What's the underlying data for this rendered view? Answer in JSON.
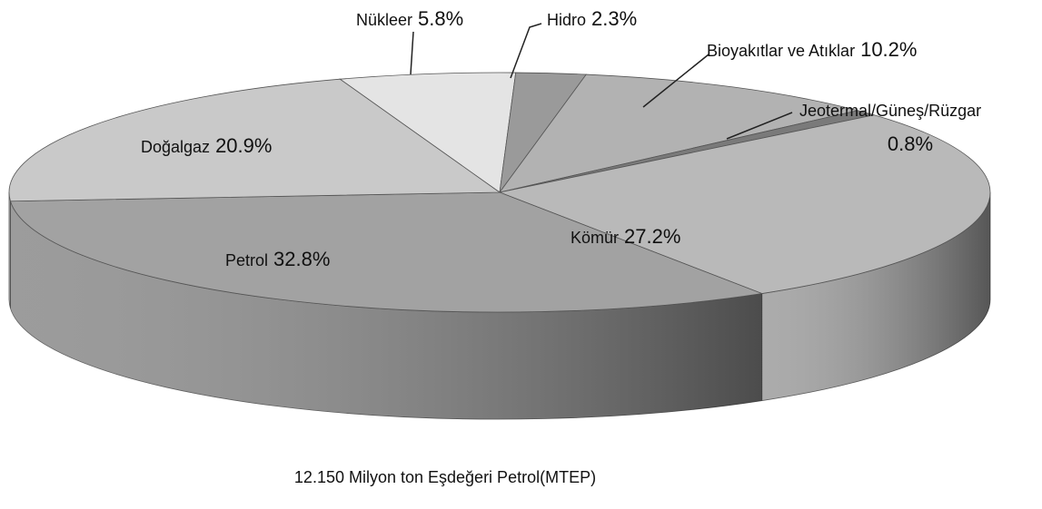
{
  "chart_data": {
    "type": "pie",
    "title": "12.150 Milyon ton Eşdeğeri Petrol(MTEP)",
    "categories": [
      "Nükleer",
      "Hidro",
      "Bioyakıtlar ve Atıklar",
      "Jeotermal/Güneş/Rüzgar",
      "Kömür",
      "Petrol",
      "Doğalgaz"
    ],
    "values": [
      5.8,
      2.3,
      10.2,
      0.8,
      27.2,
      32.8,
      20.9
    ],
    "value_labels": [
      "5.8%",
      "2.3%",
      "10.2%",
      "0.8%",
      "27.2%",
      "32.8%",
      "20.9%"
    ],
    "colors": [
      "#e4e4e4",
      "#9a9a9a",
      "#b2b2b2",
      "#7a7a7a",
      "#b9b9b9",
      "#a2a2a2",
      "#c9c9c9"
    ]
  }
}
